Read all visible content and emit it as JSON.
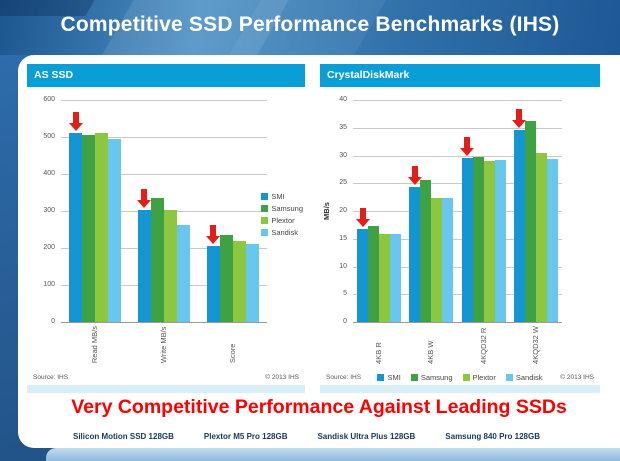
{
  "title": "Competitive SSD Performance Benchmarks (IHS)",
  "headline": "Very Competitive Performance Against Leading SSDs",
  "products": [
    "Silicon Motion SSD 128GB",
    "Plextor M5 Pro 128GB",
    "Sandisk Ultra Plus 128GB",
    "Samsung 840 Pro 128GB"
  ],
  "colors": {
    "accent_cyan": "#0A9ED6",
    "arrow_red": "#E31E18",
    "headline_red": "#FE0000",
    "product_navy": "#17365D",
    "smi_blue": "#1496D2",
    "samsung_green": "#3EA244",
    "plextor_green": "#8DC63F",
    "sandisk_blue": "#67C7EE"
  },
  "chart_data": [
    {
      "type": "bar",
      "title": "AS SSD",
      "categories": [
        "Read MB/s",
        "Write MB/s",
        "Score"
      ],
      "series": [
        {
          "name": "SMI",
          "color": "#1496D2",
          "values": [
            512,
            304,
            205
          ]
        },
        {
          "name": "Samsung",
          "color": "#3EA244",
          "values": [
            505,
            335,
            234
          ]
        },
        {
          "name": "Plextor",
          "color": "#8DC63F",
          "values": [
            510,
            303,
            219
          ]
        },
        {
          "name": "Sandisk",
          "color": "#67C7EE",
          "values": [
            495,
            262,
            211
          ]
        }
      ],
      "xlabel": "",
      "ylabel": "",
      "ylim": [
        0,
        600
      ],
      "ytick_step": 100,
      "grid": true,
      "legend_position": "right",
      "arrow_series": "SMI",
      "source": "Source: IHS",
      "copyright": "© 2013 IHS"
    },
    {
      "type": "bar",
      "title": "CrystalDiskMark",
      "categories": [
        "4KB R",
        "4KB W",
        "4KQD32 R",
        "4KQD32 W"
      ],
      "series": [
        {
          "name": "SMI",
          "color": "#1496D2",
          "values": [
            16.8,
            24.4,
            29.5,
            34.6
          ]
        },
        {
          "name": "Samsung",
          "color": "#3EA244",
          "values": [
            17.3,
            25.6,
            29.7,
            36.3
          ]
        },
        {
          "name": "Plextor",
          "color": "#8DC63F",
          "values": [
            15.8,
            22.3,
            29.0,
            30.4
          ]
        },
        {
          "name": "Sandisk",
          "color": "#67C7EE",
          "values": [
            15.9,
            22.4,
            29.2,
            29.3
          ]
        }
      ],
      "xlabel": "",
      "ylabel": "MB/s",
      "ylim": [
        0,
        40
      ],
      "ytick_step": 5,
      "grid": true,
      "legend_position": "bottom",
      "arrow_series": "SMI",
      "source": "Source: IHS",
      "copyright": "© 2013 IHS"
    }
  ]
}
